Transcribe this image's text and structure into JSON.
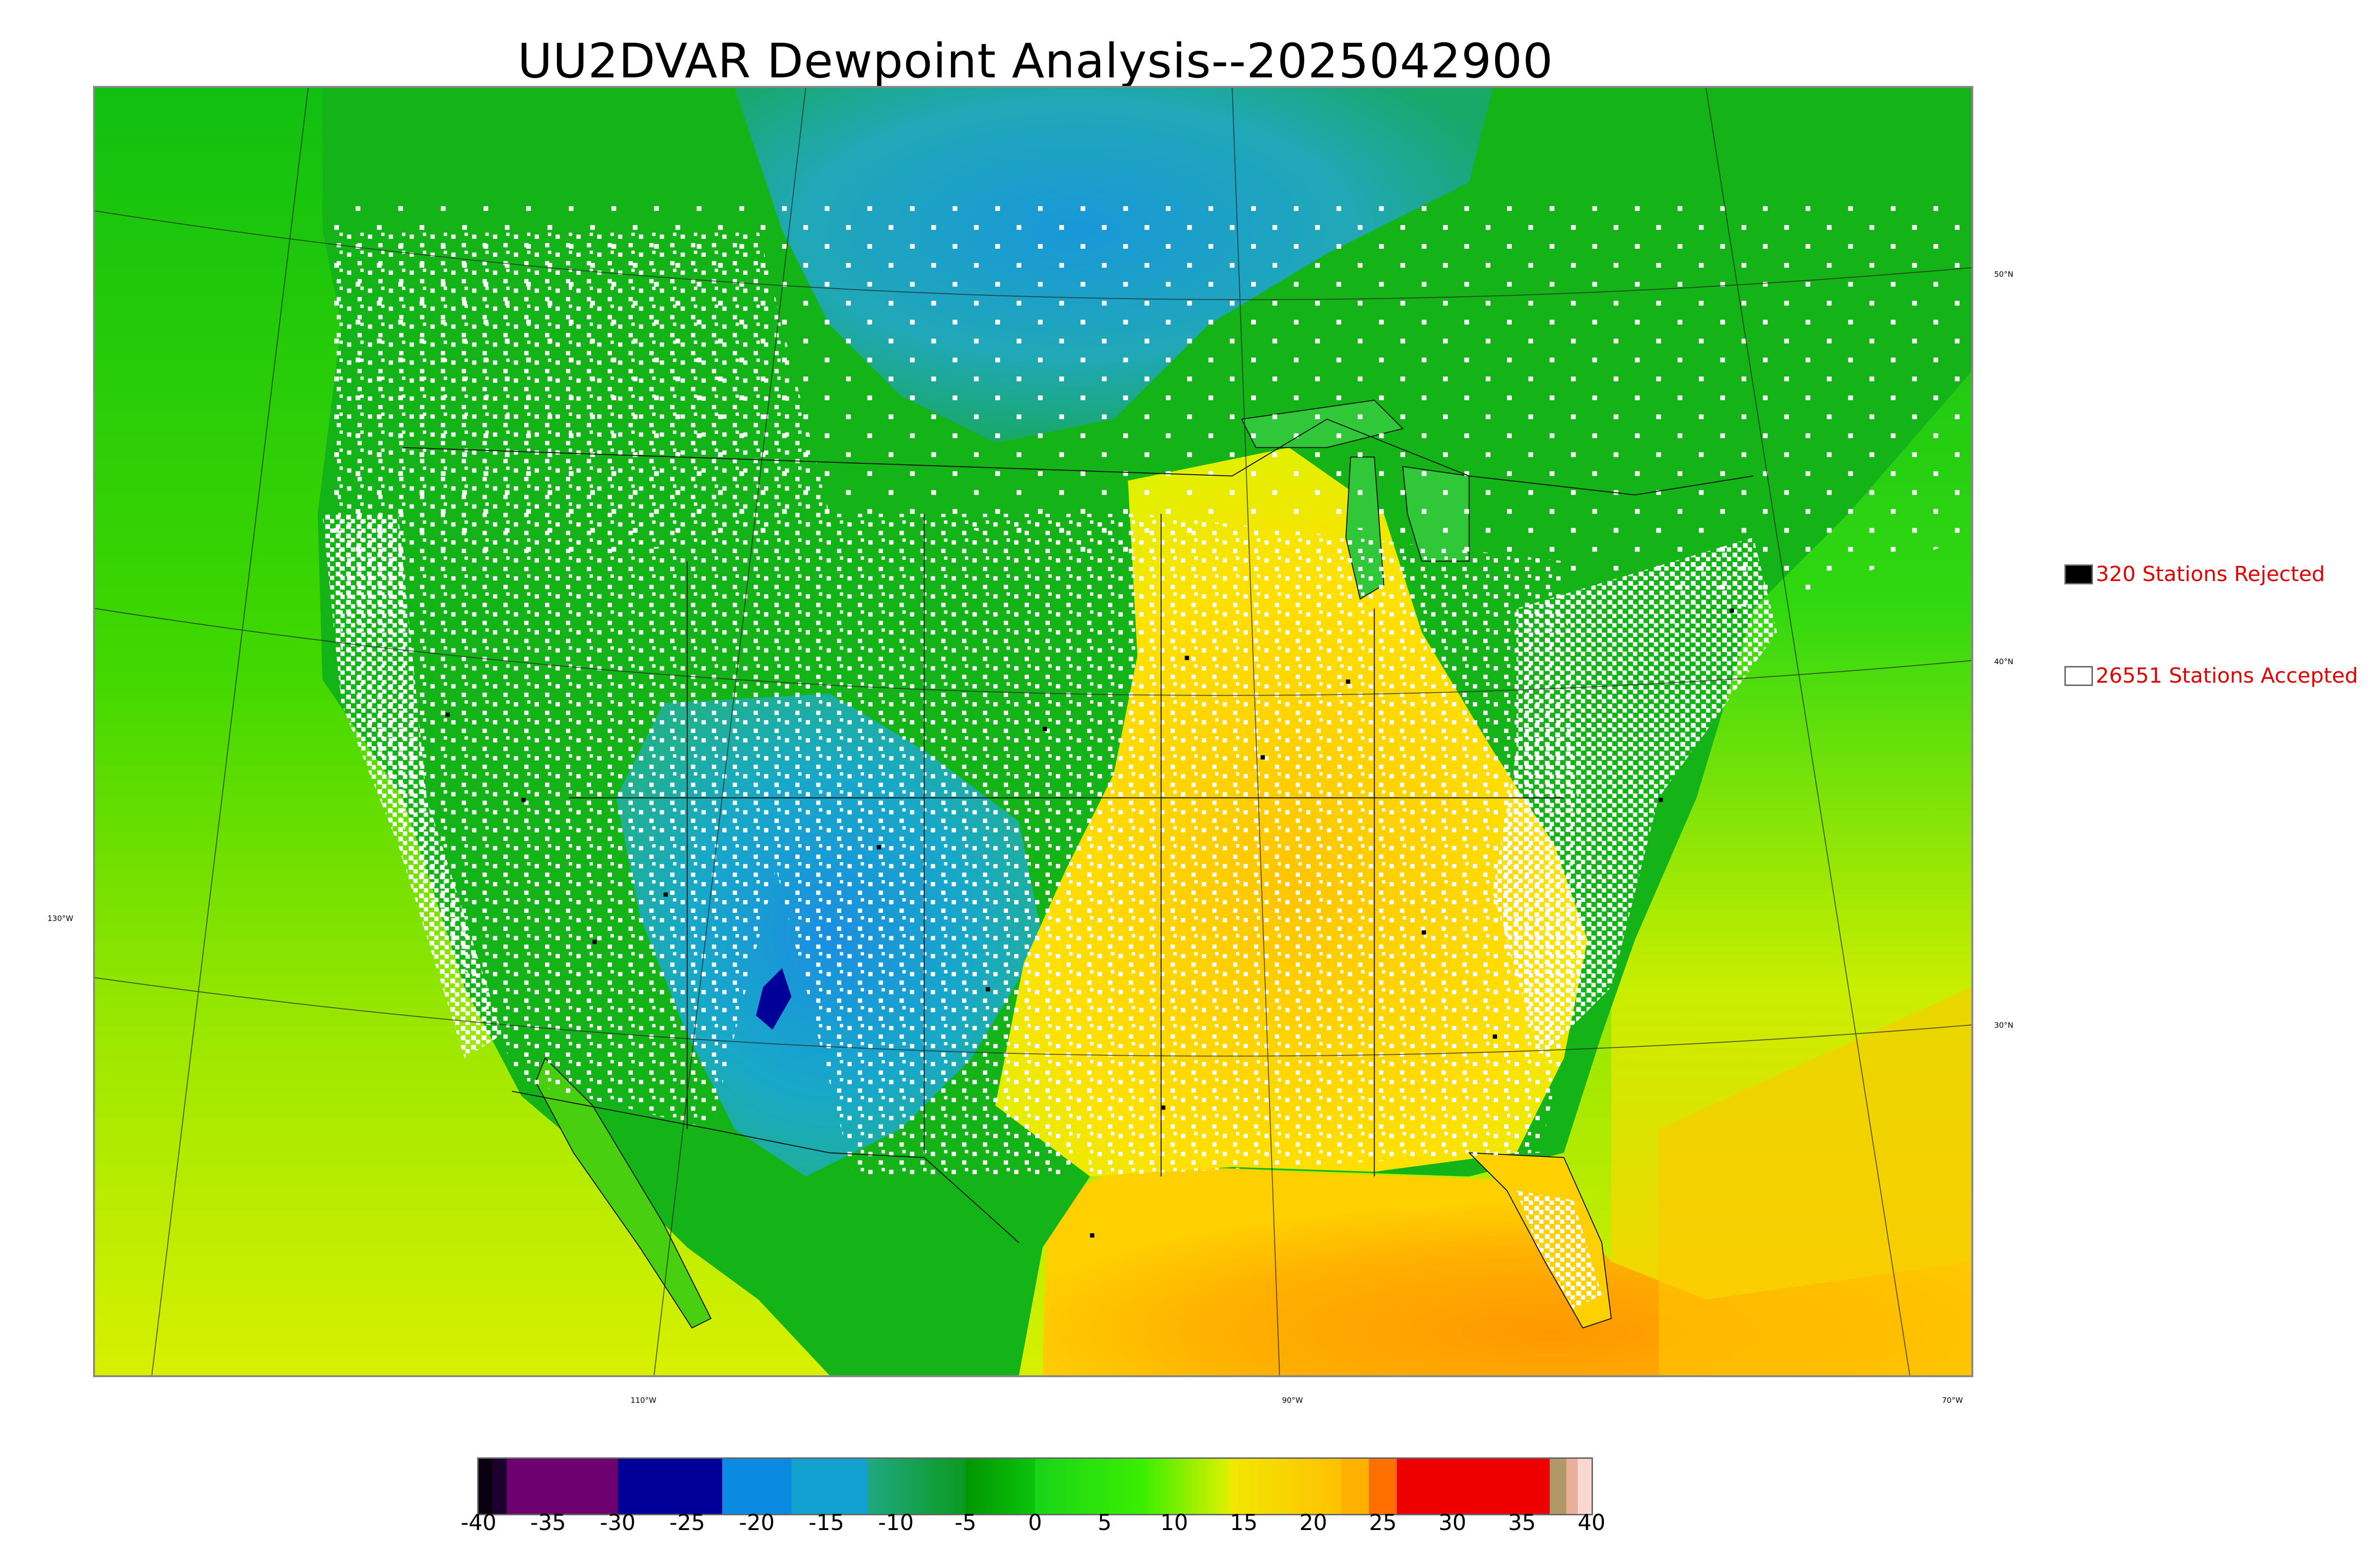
{
  "title": "UU2DVAR Dewpoint Analysis--2025042900",
  "legend": {
    "rejected": {
      "label": "320 Stations Rejected",
      "swatch_color": "#000000"
    },
    "accepted": {
      "label": "26551 Stations Accepted",
      "swatch_color": "#ffffff"
    }
  },
  "latitude_labels": [
    "50°N",
    "40°N",
    "30°N"
  ],
  "longitude_labels": [
    "130°W",
    "110°W",
    "90°W",
    "70°W"
  ],
  "colorbar": {
    "ticks": [
      "-40",
      "-35",
      "-30",
      "-25",
      "-20",
      "-15",
      "-10",
      "-5",
      "0",
      "5",
      "10",
      "15",
      "20",
      "25",
      "30",
      "35",
      "40"
    ],
    "range": [
      -40,
      40
    ],
    "bands": [
      {
        "from": -40,
        "to": -39,
        "color": "#0a0010"
      },
      {
        "from": -39,
        "to": -38,
        "color": "#1e0030"
      },
      {
        "from": -38,
        "to": -30,
        "color": "#6e0070"
      },
      {
        "from": -30,
        "to": -22.5,
        "color": "#000098"
      },
      {
        "from": -22.5,
        "to": -17.5,
        "color": "#0a8ae0"
      },
      {
        "from": -17.5,
        "to": -12,
        "color": "#12a0d0"
      },
      {
        "from": -12,
        "to": -5,
        "color": "#1fa880",
        "to_color": "#0a9a20"
      },
      {
        "from": -5,
        "to": 0,
        "color": "#009600",
        "to_color": "#0cc40c"
      },
      {
        "from": 0,
        "to": 8,
        "color": "#18d418",
        "to_color": "#3cf000"
      },
      {
        "from": 8,
        "to": 14,
        "color": "#40f000",
        "to_color": "#e0f000"
      },
      {
        "from": 14,
        "to": 22,
        "color": "#f2e800",
        "to_color": "#ffc000"
      },
      {
        "from": 22,
        "to": 24,
        "color": "#ffb000"
      },
      {
        "from": 24,
        "to": 26,
        "color": "#ff7000"
      },
      {
        "from": 26,
        "to": 37,
        "color": "#ee0000"
      },
      {
        "from": 37,
        "to": 38.2,
        "color": "#b09868"
      },
      {
        "from": 38.2,
        "to": 39,
        "color": "#e8b098"
      },
      {
        "from": 39,
        "to": 40,
        "color": "#f8d8d0"
      }
    ]
  },
  "map_colors": {
    "ocean_pacific": "#90e000",
    "ocean_atlantic_north": "#10c010",
    "gulf": "#ffa000",
    "canada_prairie": "#20a8b0",
    "rockies_dry": "#10b8d0",
    "plains_green": "#10b020",
    "southeast_yellow": "#ffd800",
    "south_orange": "#ffb800",
    "station_accepted": "#ffffff",
    "station_rejected": "#000000"
  }
}
